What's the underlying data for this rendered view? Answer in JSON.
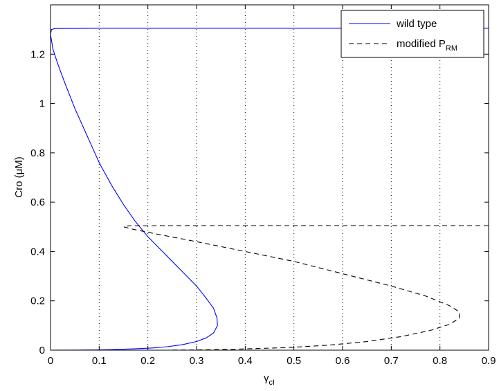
{
  "chart_data": {
    "type": "line",
    "xlim": [
      0,
      0.9
    ],
    "ylim": [
      0,
      1.4
    ],
    "x_ticks": [
      "0",
      "0.1",
      "0.2",
      "0.3",
      "0.4",
      "0.5",
      "0.6",
      "0.7",
      "0.8",
      "0.9"
    ],
    "y_ticks": [
      "0",
      "0.2",
      "0.4",
      "0.6",
      "0.8",
      "1",
      "1.2"
    ],
    "xlabel": {
      "main": "γ",
      "sub": "cI"
    },
    "ylabel": "Cro (μM)",
    "grid": "vertical dotted",
    "legend_position": "top-right",
    "series": [
      {
        "name": "wild type",
        "color": "#0000ff",
        "dash": "solid",
        "x": [
          0.9,
          0.6,
          0.3,
          0.1,
          0.01,
          0.002,
          0.0,
          0.005,
          0.015,
          0.03,
          0.05,
          0.075,
          0.1,
          0.125,
          0.15,
          0.175,
          0.2,
          0.225,
          0.25,
          0.275,
          0.3,
          0.32,
          0.335,
          0.342,
          0.343,
          0.335,
          0.32,
          0.3,
          0.27,
          0.24,
          0.21,
          0.18,
          0.15,
          0.12,
          0.09,
          0.06,
          0.03,
          0.005
        ],
        "y": [
          1.305,
          1.305,
          1.305,
          1.305,
          1.304,
          1.3,
          1.28,
          1.22,
          1.16,
          1.08,
          0.98,
          0.87,
          0.76,
          0.67,
          0.59,
          0.52,
          0.46,
          0.41,
          0.36,
          0.31,
          0.26,
          0.21,
          0.17,
          0.13,
          0.1,
          0.07,
          0.05,
          0.035,
          0.022,
          0.014,
          0.009,
          0.006,
          0.004,
          0.002,
          0.001,
          0.0005,
          0.0003,
          0.0002
        ]
      },
      {
        "name": "modified P",
        "name_sub": "RM",
        "color": "#000000",
        "dash": "dashed",
        "x": [
          0.9,
          0.6,
          0.3,
          0.16,
          0.15,
          0.17,
          0.22,
          0.3,
          0.4,
          0.5,
          0.6,
          0.7,
          0.77,
          0.82,
          0.84,
          0.84,
          0.82,
          0.78,
          0.72,
          0.65,
          0.57,
          0.48,
          0.38,
          0.3,
          0.25
        ],
        "y": [
          0.505,
          0.505,
          0.505,
          0.504,
          0.5,
          0.49,
          0.47,
          0.44,
          0.4,
          0.36,
          0.31,
          0.26,
          0.22,
          0.18,
          0.155,
          0.13,
          0.105,
          0.08,
          0.055,
          0.035,
          0.02,
          0.01,
          0.004,
          0.001,
          0.0005
        ]
      }
    ]
  }
}
